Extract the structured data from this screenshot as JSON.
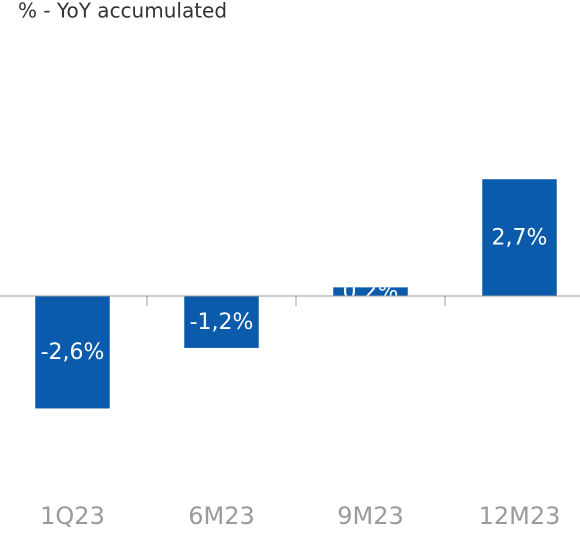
{
  "chart_data": {
    "type": "bar",
    "subtitle": "% - YoY accumulated",
    "categories": [
      "1Q23",
      "6M23",
      "9M23",
      "12M23"
    ],
    "values": [
      -2.6,
      -1.2,
      0.2,
      2.7
    ],
    "value_labels": [
      "-2,6%",
      "-1,2%",
      "0,2%",
      "2,7%"
    ],
    "color": "#0a5bab",
    "ylim": [
      -4,
      4
    ]
  }
}
